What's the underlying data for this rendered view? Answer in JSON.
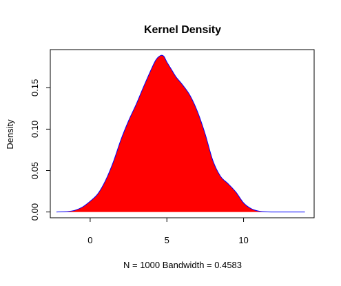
{
  "chart_data": {
    "type": "area",
    "title": "Kernel Density",
    "xlabel": "N = 1000   Bandwidth = 0.4583",
    "ylabel": "Density",
    "xlim": [
      -2.6,
      14.6
    ],
    "ylim": [
      -0.007,
      0.196
    ],
    "x_ticks": [
      0,
      5,
      10
    ],
    "x_tick_labels": [
      "0",
      "5",
      "10"
    ],
    "y_ticks": [
      0.0,
      0.05,
      0.1,
      0.15
    ],
    "y_tick_labels": [
      "0.00",
      "0.05",
      "0.10",
      "0.15"
    ],
    "grid": false,
    "legend": "none",
    "fill_color": "#ff0000",
    "line_color": "#0000ff",
    "x": [
      -2.2,
      -1.5,
      -1.0,
      -0.5,
      0.0,
      0.5,
      1.0,
      1.5,
      2.0,
      2.5,
      3.0,
      3.5,
      4.0,
      4.3,
      4.6,
      4.8,
      5.0,
      5.3,
      5.6,
      6.0,
      6.5,
      7.0,
      7.5,
      8.0,
      8.5,
      9.0,
      9.5,
      10.0,
      10.5,
      11.0,
      11.5,
      12.0,
      13.0,
      14.0
    ],
    "values": [
      0.0,
      0.0005,
      0.002,
      0.006,
      0.013,
      0.022,
      0.038,
      0.06,
      0.087,
      0.11,
      0.13,
      0.152,
      0.173,
      0.184,
      0.189,
      0.188,
      0.181,
      0.172,
      0.163,
      0.154,
      0.141,
      0.121,
      0.094,
      0.062,
      0.043,
      0.034,
      0.024,
      0.011,
      0.004,
      0.001,
      0.0002,
      0.0,
      0.0,
      0.0
    ]
  }
}
